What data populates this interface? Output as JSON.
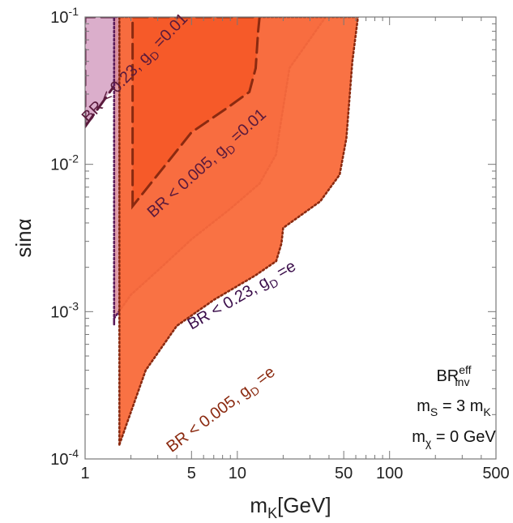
{
  "chart_data": {
    "type": "area",
    "xlabel": "m_K[GeV]",
    "ylabel": "sinα",
    "x_scale": "log",
    "y_scale": "log",
    "xlim": [
      1,
      500
    ],
    "ylim": [
      0.0001,
      0.1
    ],
    "x_ticks": [
      {
        "value": 1,
        "label": "1"
      },
      {
        "value": 5,
        "label": "5"
      },
      {
        "value": 10,
        "label": "10"
      },
      {
        "value": 50,
        "label": "50"
      },
      {
        "value": 100,
        "label": "100"
      },
      {
        "value": 500,
        "label": "500"
      }
    ],
    "y_ticks": [
      {
        "value": 0.1,
        "label": "10",
        "exp": "-1"
      },
      {
        "value": 0.01,
        "label": "10",
        "exp": "-2"
      },
      {
        "value": 0.001,
        "label": "10",
        "exp": "-3"
      },
      {
        "value": 0.0001,
        "label": "10",
        "exp": "-4"
      }
    ],
    "grid": false,
    "series": [
      {
        "name": "BR < 0.23, g_D =0.01",
        "fill": "#d9aac8",
        "stroke": "#5a1a3c",
        "dash": "long",
        "points": [
          [
            1.0,
            0.018
          ],
          [
            1.55,
            0.034
          ],
          [
            2.3,
            0.06
          ],
          [
            3.5,
            0.1
          ],
          [
            1.55,
            0.1
          ],
          [
            1.55,
            0.1
          ],
          [
            1.0,
            0.1
          ]
        ]
      },
      {
        "name": "BR < 0.23, g_D =e",
        "fill": "#d98a98",
        "stroke": "#5a1a5a",
        "dash": "dotted",
        "points": [
          [
            1.55,
            0.00082
          ],
          [
            1.55,
            0.1
          ],
          [
            38,
            0.1
          ],
          [
            22,
            0.045
          ],
          [
            18.5,
            0.0145
          ],
          [
            18,
            0.0117
          ],
          [
            14,
            0.0074
          ],
          [
            9,
            0.005
          ],
          [
            5,
            0.0031
          ],
          [
            3,
            0.0019
          ],
          [
            2,
            0.0013
          ],
          [
            1.55,
            0.0009
          ]
        ]
      },
      {
        "name": "BR < 0.005, g_D =e",
        "fill": "#f96a3a",
        "stroke": "#8b2a10",
        "dash": "dotted",
        "points": [
          [
            1.68,
            0.000125
          ],
          [
            1.68,
            0.1
          ],
          [
            62,
            0.1
          ],
          [
            57,
            0.05
          ],
          [
            52,
            0.015
          ],
          [
            47,
            0.0085
          ],
          [
            35,
            0.0056
          ],
          [
            20,
            0.0037
          ],
          [
            19.5,
            0.0029
          ],
          [
            18,
            0.0022
          ],
          [
            13,
            0.00175
          ],
          [
            7,
            0.0012
          ],
          [
            4,
            0.0008
          ],
          [
            2.5,
            0.0004
          ],
          [
            1.68,
            0.000125
          ]
        ]
      },
      {
        "name": "BR < 0.005, g_D =0.01",
        "fill": "#f55a28",
        "stroke": "#8b2a10",
        "dash": "long",
        "points": [
          [
            2.05,
            0.0052
          ],
          [
            2.05,
            0.1
          ],
          [
            14,
            0.1
          ],
          [
            13.7,
            0.08
          ],
          [
            13.2,
            0.045
          ],
          [
            12,
            0.031
          ],
          [
            8.5,
            0.024
          ],
          [
            5,
            0.0165
          ],
          [
            2.05,
            0.0052
          ]
        ]
      }
    ],
    "curve_labels": [
      {
        "text": "BR < 0.23, g",
        "sub": "D",
        "tail": " =0.01",
        "color": "#5a1a3c",
        "x": 1.05,
        "y": 0.019,
        "angle": -46
      },
      {
        "text": "BR < 0.005, g",
        "sub": "D",
        "tail": " =0.01",
        "color": "#5a1a3c",
        "x": 2.8,
        "y": 0.0043,
        "angle": -42
      },
      {
        "text": "BR < 0.23, g",
        "sub": "D",
        "tail": " =e",
        "color": "#3a0d4a",
        "x": 5.0,
        "y": 0.00075,
        "angle": -30
      },
      {
        "text": "BR < 0.005, g",
        "sub": "D",
        "tail": " =e",
        "color": "#8b2a10",
        "x": 3.7,
        "y": 0.00011,
        "angle": -37
      }
    ],
    "annotations": [
      {
        "main": "BR",
        "sup": "eff",
        "sub": "inv",
        "tail": ""
      },
      {
        "main": "m",
        "sup": "",
        "sub": "S",
        "tail": " = 3 m",
        "sub2": "K"
      },
      {
        "main": "m",
        "sup": "",
        "sub": "χ",
        "tail": " = 0 GeV",
        "sub2": ""
      }
    ]
  }
}
